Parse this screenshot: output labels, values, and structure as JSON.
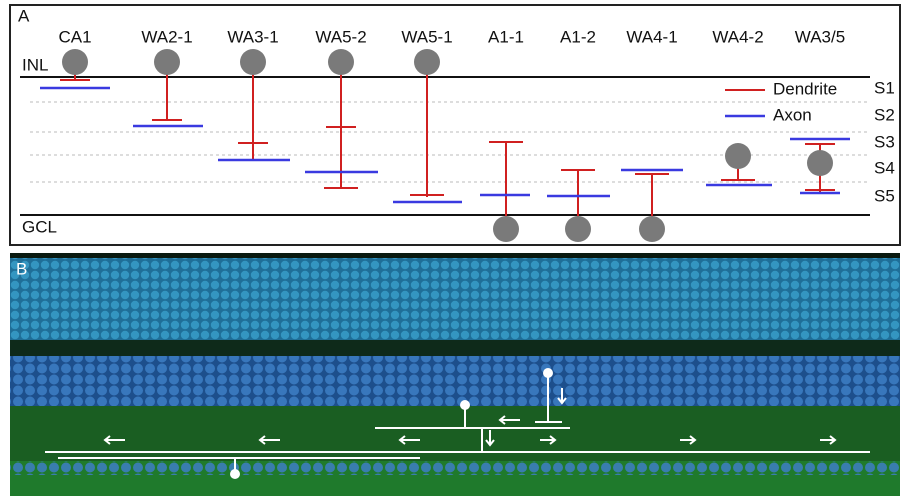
{
  "panel_a": {
    "label": "A",
    "cells": [
      "CA1",
      "WA2-1",
      "WA3-1",
      "WA5-2",
      "WA5-1",
      "A1-1",
      "A1-2",
      "WA4-1",
      "WA4-2",
      "WA3/5"
    ],
    "layers": {
      "top": "INL",
      "bottom": "GCL"
    },
    "strata": [
      "S1",
      "S2",
      "S3",
      "S4",
      "S5"
    ],
    "legend": {
      "dendrite": "Dendrite",
      "axon": "Axon"
    }
  },
  "panel_b": {
    "label": "B"
  }
}
